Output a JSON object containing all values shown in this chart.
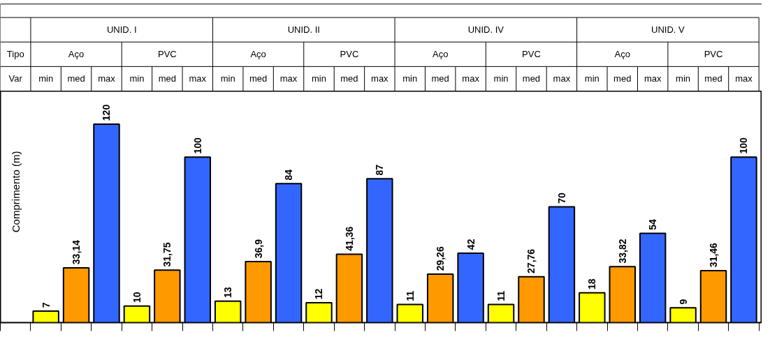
{
  "chart_data": {
    "type": "bar",
    "ylabel": "Comprimento  (m)",
    "categories": [
      "min",
      "med",
      "max",
      "min",
      "med",
      "max",
      "min",
      "med",
      "max",
      "min",
      "med",
      "max",
      "min",
      "med",
      "max",
      "min",
      "med",
      "max",
      "min",
      "med",
      "max",
      "min",
      "med",
      "max"
    ],
    "values": [
      7,
      33.14,
      120,
      10,
      31.75,
      100,
      13,
      36.9,
      84,
      12,
      41.36,
      87,
      11,
      29.26,
      42,
      11,
      27.76,
      70,
      18,
      33.82,
      54,
      9,
      31.46,
      100
    ],
    "colors": [
      "#ffff00",
      "#ff9900",
      "#3366ff",
      "#ffff00",
      "#ff9900",
      "#3366ff",
      "#ffff00",
      "#ff9900",
      "#3366ff",
      "#ffff00",
      "#ff9900",
      "#3366ff",
      "#ffff00",
      "#ff9900",
      "#3366ff",
      "#ffff00",
      "#ff9900",
      "#3366ff",
      "#ffff00",
      "#ff9900",
      "#3366ff",
      "#ffff00",
      "#ff9900",
      "#3366ff"
    ],
    "ylim": [
      0,
      140
    ],
    "tick_labels": false,
    "value_labels": [
      "7",
      "33,14",
      "120",
      "10",
      "31,75",
      "100",
      "13",
      "36,9",
      "84",
      "12",
      "41,36",
      "87",
      "11",
      "29,26",
      "42",
      "11",
      "27,76",
      "70",
      "18",
      "33,82",
      "54",
      "9",
      "31,46",
      "100"
    ],
    "annotations": [
      "Tipo",
      "Var",
      "UNID. I",
      "UNID. II",
      "UNID. IV",
      "UNID. V",
      "Aço",
      "PVC",
      "Aço",
      "PVC",
      "Aço",
      "PVC",
      "Aço",
      "PVC"
    ]
  }
}
